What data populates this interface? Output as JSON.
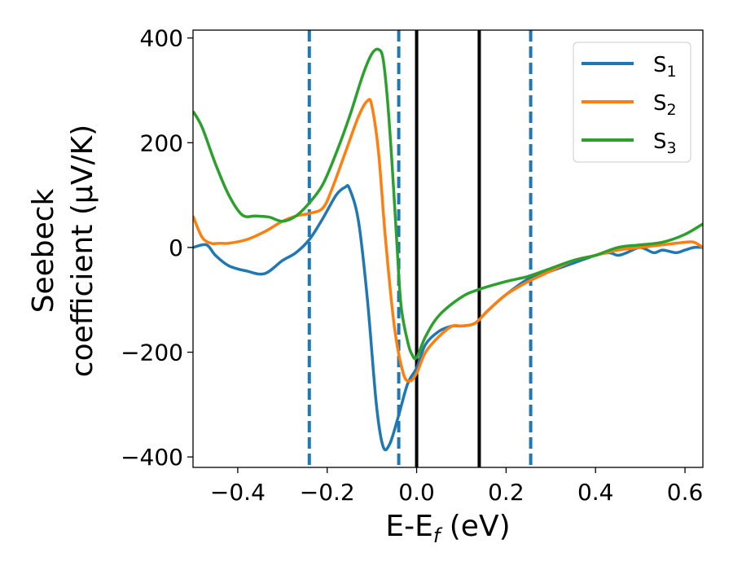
{
  "chart_data": {
    "type": "line",
    "xlabel": "E-E_f (eV)",
    "ylabel_line1": "Seebeck",
    "ylabel_line2": "coefficient  (μV/K)",
    "xlim": [
      -0.5,
      0.64
    ],
    "ylim": [
      -420,
      415
    ],
    "xticks": [
      -0.4,
      -0.2,
      0.0,
      0.2,
      0.4,
      0.6
    ],
    "xtick_labels": [
      "−0.4",
      "−0.2",
      "0.0",
      "0.2",
      "0.4",
      "0.6"
    ],
    "yticks": [
      -400,
      -200,
      0,
      200,
      400
    ],
    "ytick_labels": [
      "−400",
      "−200",
      "0",
      "200",
      "400"
    ],
    "grid": false,
    "legend_position": "top-right",
    "vlines": [
      {
        "x": -0.24,
        "style": "dashed",
        "color": "#1f77b4"
      },
      {
        "x": -0.04,
        "style": "dashed",
        "color": "#1f77b4"
      },
      {
        "x": 0.0,
        "style": "solid",
        "color": "#000000"
      },
      {
        "x": 0.14,
        "style": "solid",
        "color": "#000000"
      },
      {
        "x": 0.255,
        "style": "dashed",
        "color": "#1f77b4"
      }
    ],
    "series": [
      {
        "name": "S1",
        "label_main": "S",
        "label_sub": "1",
        "color": "#1f77b4",
        "x": [
          -0.5,
          -0.47,
          -0.45,
          -0.42,
          -0.38,
          -0.34,
          -0.3,
          -0.27,
          -0.24,
          -0.21,
          -0.18,
          -0.16,
          -0.15,
          -0.13,
          -0.11,
          -0.09,
          -0.075,
          -0.06,
          -0.04,
          -0.02,
          0.0,
          0.02,
          0.05,
          0.08,
          0.1,
          0.13,
          0.16,
          0.2,
          0.25,
          0.3,
          0.35,
          0.4,
          0.43,
          0.45,
          0.47,
          0.5,
          0.53,
          0.55,
          0.58,
          0.6,
          0.62,
          0.64
        ],
        "y": [
          0,
          5,
          -15,
          -35,
          -45,
          -50,
          -25,
          -10,
          15,
          55,
          100,
          115,
          112,
          50,
          -100,
          -300,
          -380,
          -375,
          -320,
          -260,
          -230,
          -185,
          -160,
          -150,
          -150,
          -145,
          -120,
          -90,
          -60,
          -45,
          -30,
          -15,
          -10,
          -15,
          -10,
          0,
          -10,
          -5,
          -10,
          -5,
          0,
          0
        ]
      },
      {
        "name": "S2",
        "label_main": "S",
        "label_sub": "2",
        "color": "#ff7f0e",
        "x": [
          -0.5,
          -0.48,
          -0.46,
          -0.44,
          -0.42,
          -0.38,
          -0.34,
          -0.3,
          -0.27,
          -0.24,
          -0.21,
          -0.19,
          -0.16,
          -0.13,
          -0.11,
          -0.1,
          -0.085,
          -0.07,
          -0.05,
          -0.03,
          -0.015,
          0.0,
          0.02,
          0.05,
          0.08,
          0.1,
          0.13,
          0.16,
          0.2,
          0.25,
          0.3,
          0.35,
          0.4,
          0.45,
          0.5,
          0.55,
          0.6,
          0.62,
          0.64
        ],
        "y": [
          60,
          20,
          8,
          8,
          8,
          15,
          30,
          50,
          60,
          65,
          75,
          110,
          180,
          250,
          280,
          270,
          180,
          20,
          -150,
          -240,
          -255,
          -240,
          -200,
          -170,
          -150,
          -150,
          -145,
          -120,
          -90,
          -65,
          -45,
          -25,
          -15,
          -5,
          0,
          5,
          10,
          10,
          0
        ]
      },
      {
        "name": "S3",
        "label_main": "S",
        "label_sub": "3",
        "color": "#2ca02c",
        "x": [
          -0.5,
          -0.48,
          -0.45,
          -0.42,
          -0.39,
          -0.36,
          -0.33,
          -0.3,
          -0.27,
          -0.24,
          -0.21,
          -0.18,
          -0.15,
          -0.12,
          -0.1,
          -0.085,
          -0.075,
          -0.065,
          -0.055,
          -0.045,
          -0.035,
          -0.02,
          -0.01,
          0.0,
          0.02,
          0.05,
          0.1,
          0.14,
          0.2,
          0.25,
          0.3,
          0.35,
          0.4,
          0.45,
          0.5,
          0.55,
          0.6,
          0.64
        ],
        "y": [
          260,
          230,
          160,
          100,
          62,
          60,
          58,
          50,
          60,
          85,
          120,
          180,
          250,
          330,
          370,
          378,
          360,
          280,
          160,
          20,
          -110,
          -180,
          -205,
          -210,
          -170,
          -130,
          -95,
          -80,
          -65,
          -55,
          -40,
          -25,
          -15,
          0,
          5,
          10,
          25,
          45
        ]
      }
    ]
  }
}
